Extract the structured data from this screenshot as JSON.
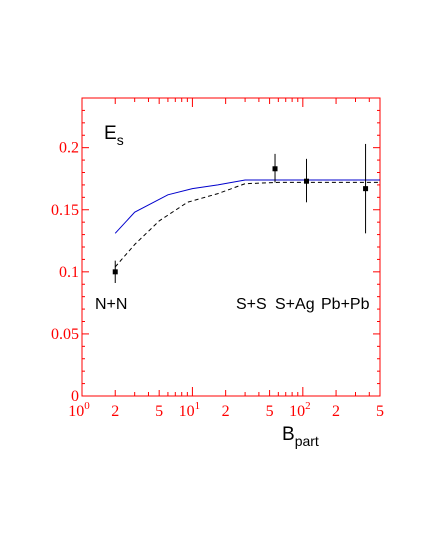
{
  "colors": {
    "axis": "#ff0000",
    "solid_curve": "#0000cc",
    "dashed_curve": "#000000",
    "points": "#000000"
  },
  "chart_data": {
    "type": "line",
    "title": {
      "main": "E",
      "sub": "s"
    },
    "xlabel": {
      "main": "B",
      "sub": "part"
    },
    "ylabel": "",
    "x_scale": "log",
    "xlim": [
      1,
      500
    ],
    "ylim": [
      0,
      0.24
    ],
    "grid": false,
    "legend": "none",
    "y_ticks": [
      {
        "value": 0,
        "label": "0"
      },
      {
        "value": 0.05,
        "label": "0.05"
      },
      {
        "value": 0.1,
        "label": "0.1"
      },
      {
        "value": 0.15,
        "label": "0.15"
      },
      {
        "value": 0.2,
        "label": "0.2"
      }
    ],
    "x_ticks": [
      {
        "value": 1,
        "base": "10",
        "exp": "0"
      },
      {
        "value": 2,
        "base": "2",
        "exp": ""
      },
      {
        "value": 5,
        "base": "5",
        "exp": ""
      },
      {
        "value": 10,
        "base": "10",
        "exp": "1"
      },
      {
        "value": 20,
        "base": "2",
        "exp": ""
      },
      {
        "value": 50,
        "base": "5",
        "exp": ""
      },
      {
        "value": 100,
        "base": "10",
        "exp": "2"
      },
      {
        "value": 200,
        "base": "2",
        "exp": ""
      },
      {
        "value": 500,
        "base": "5",
        "exp": ""
      }
    ],
    "series": [
      {
        "style": "solid",
        "x": [
          2,
          3,
          6,
          10,
          17,
          30,
          60,
          100,
          200,
          500
        ],
        "y": [
          0.131,
          0.148,
          0.162,
          0.167,
          0.17,
          0.174,
          0.174,
          0.174,
          0.174,
          0.174
        ]
      },
      {
        "style": "dashed",
        "x": [
          2,
          3,
          5,
          9,
          17,
          30,
          60,
          100,
          200,
          500
        ],
        "y": [
          0.104,
          0.122,
          0.141,
          0.156,
          0.163,
          0.171,
          0.172,
          0.172,
          0.172,
          0.172
        ]
      }
    ],
    "points": [
      {
        "x": 2,
        "y": 0.1,
        "err_low": 0.091,
        "err_high": 0.109
      },
      {
        "x": 56,
        "y": 0.183,
        "err_low": 0.172,
        "err_high": 0.195
      },
      {
        "x": 108,
        "y": 0.173,
        "err_low": 0.156,
        "err_high": 0.191
      },
      {
        "x": 370,
        "y": 0.167,
        "err_low": 0.131,
        "err_high": 0.203
      }
    ],
    "annotations": [
      {
        "text": "N+N",
        "x": 1.55,
        "y": 0.075
      },
      {
        "text": "S+S",
        "x": 64,
        "y": 0.075
      },
      {
        "text": "S+Ag",
        "x": 185,
        "y": 0.075
      },
      {
        "text": "Pb+Pb",
        "x": 700,
        "y": 0.075
      }
    ]
  }
}
